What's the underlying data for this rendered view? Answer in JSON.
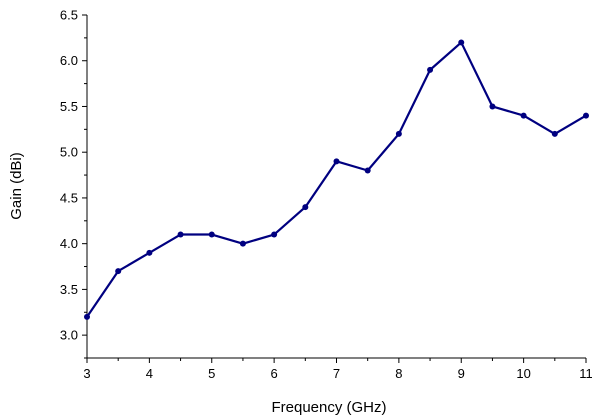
{
  "chart_data": {
    "type": "line",
    "title": "",
    "xlabel": "Frequency (GHz)",
    "ylabel": "Gain (dBi)",
    "xlim": [
      3,
      11
    ],
    "ylim": [
      2.75,
      6.5
    ],
    "x_ticks": [
      "3",
      "4",
      "5",
      "6",
      "7",
      "8",
      "9",
      "10",
      "11"
    ],
    "y_ticks": [
      "3.0",
      "3.5",
      "4.0",
      "4.5",
      "5.0",
      "5.5",
      "6.0",
      "6.5"
    ],
    "grid": false,
    "legend": "none",
    "series_color": "#000080",
    "series": [
      {
        "x": [
          3,
          3.5,
          4,
          4.5,
          5,
          5.5,
          6,
          6.5,
          7,
          7.5,
          8,
          8.5,
          9,
          9.5,
          10,
          10.5,
          11
        ],
        "y": [
          3.2,
          3.7,
          3.9,
          4.1,
          4.1,
          4.0,
          4.1,
          4.4,
          4.9,
          4.8,
          5.2,
          5.9,
          6.2,
          5.5,
          5.4,
          5.2,
          5.4
        ]
      }
    ]
  }
}
